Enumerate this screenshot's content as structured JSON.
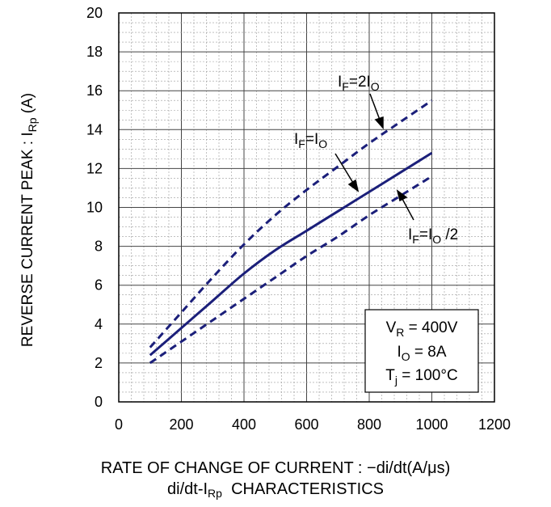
{
  "chart_data": {
    "type": "line",
    "x_axis": {
      "min": 0,
      "max": 1200,
      "ticks": [
        "0",
        "200",
        "400",
        "600",
        "800",
        "1000",
        "1200"
      ],
      "label_text": "RATE OF CHANGE OF CURRENT : −di/dt(A/μs)"
    },
    "y_axis": {
      "min": 0,
      "max": 20,
      "ticks": [
        "0",
        "2",
        "4",
        "6",
        "8",
        "10",
        "12",
        "14",
        "16",
        "18",
        "20"
      ],
      "label_main": "REVERSE CURRENT PEAK : I",
      "label_sub": "Rp",
      "label_unit": " (A)"
    },
    "grid": {
      "major": true,
      "minor": true
    },
    "series": [
      {
        "name": "IF=2IO",
        "style": "dashed",
        "x": [
          100,
          200,
          300,
          400,
          500,
          600,
          700,
          800,
          900,
          1000
        ],
        "y": [
          2.8,
          4.6,
          6.4,
          8.1,
          9.6,
          10.9,
          12.1,
          13.3,
          14.4,
          15.5
        ]
      },
      {
        "name": "IF=IO",
        "style": "solid",
        "x": [
          100,
          200,
          300,
          400,
          500,
          600,
          700,
          800,
          900,
          1000
        ],
        "y": [
          2.4,
          3.8,
          5.2,
          6.6,
          7.8,
          8.8,
          9.8,
          10.8,
          11.8,
          12.8
        ]
      },
      {
        "name": "IF=IO /2",
        "style": "dashed",
        "x": [
          100,
          200,
          300,
          400,
          500,
          600,
          700,
          800,
          900,
          1000
        ],
        "y": [
          2.0,
          3.1,
          4.2,
          5.3,
          6.4,
          7.5,
          8.5,
          9.6,
          10.6,
          11.6
        ]
      }
    ],
    "series_labels": [
      {
        "main": "I",
        "sub1": "F",
        "mid": "=2I",
        "sub2": "O",
        "tail": ""
      },
      {
        "main": "I",
        "sub1": "F",
        "mid": "=I",
        "sub2": "O",
        "tail": ""
      },
      {
        "main": "I",
        "sub1": "F",
        "mid": "=I",
        "sub2": "O",
        "tail": " /2"
      }
    ],
    "conditions": [
      {
        "main": "V",
        "sub": "R",
        "rest": " = 400V"
      },
      {
        "main": "I",
        "sub": "O",
        "rest": " = 8A"
      },
      {
        "main": "T",
        "sub": "j",
        "rest": " = 100°C"
      }
    ],
    "line_color": "#1b1f7a",
    "grid_color": "#9a9a9a"
  },
  "caption": {
    "main": "di/dt-I",
    "sub": "Rp",
    "tail": "  CHARACTERISTICS"
  }
}
